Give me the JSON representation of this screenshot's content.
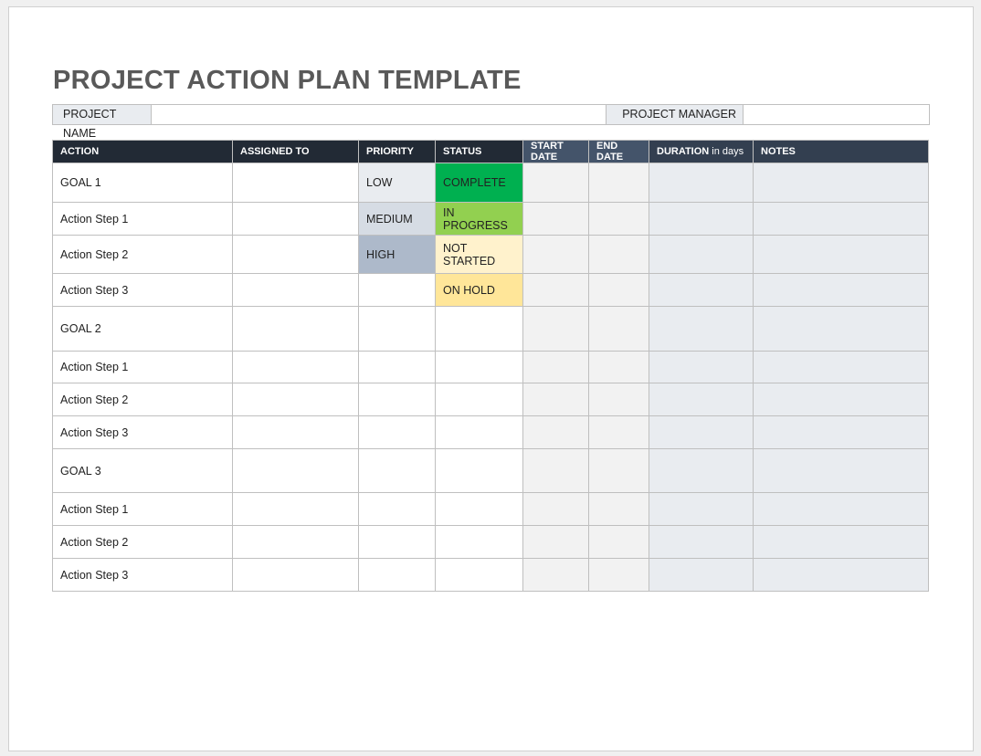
{
  "title": "PROJECT ACTION PLAN TEMPLATE",
  "project_info": {
    "name_label": "PROJECT NAME",
    "name_value": "",
    "manager_label": "PROJECT MANAGER",
    "manager_value": ""
  },
  "table": {
    "headers": {
      "action": "ACTION",
      "assigned": "ASSIGNED TO",
      "priority": "PRIORITY",
      "status": "STATUS",
      "start": "START DATE",
      "end": "END DATE",
      "duration": "DURATION",
      "duration_unit": "in days",
      "notes": "NOTES"
    },
    "rows": [
      {
        "action": "GOAL 1",
        "assigned": "",
        "priority": "LOW",
        "status": "COMPLETE",
        "start": "",
        "end": "",
        "duration": "",
        "notes": ""
      },
      {
        "action": "Action Step 1",
        "assigned": "",
        "priority": "MEDIUM",
        "status": "IN PROGRESS",
        "start": "",
        "end": "",
        "duration": "",
        "notes": ""
      },
      {
        "action": "Action Step 2",
        "assigned": "",
        "priority": "HIGH",
        "status": "NOT STARTED",
        "start": "",
        "end": "",
        "duration": "",
        "notes": ""
      },
      {
        "action": "Action Step 3",
        "assigned": "",
        "priority": "",
        "status": "ON HOLD",
        "start": "",
        "end": "",
        "duration": "",
        "notes": ""
      },
      {
        "action": "GOAL 2",
        "assigned": "",
        "priority": "",
        "status": "",
        "start": "",
        "end": "",
        "duration": "",
        "notes": ""
      },
      {
        "action": "Action Step 1",
        "assigned": "",
        "priority": "",
        "status": "",
        "start": "",
        "end": "",
        "duration": "",
        "notes": ""
      },
      {
        "action": "Action Step 2",
        "assigned": "",
        "priority": "",
        "status": "",
        "start": "",
        "end": "",
        "duration": "",
        "notes": ""
      },
      {
        "action": "Action Step 3",
        "assigned": "",
        "priority": "",
        "status": "",
        "start": "",
        "end": "",
        "duration": "",
        "notes": ""
      },
      {
        "action": "GOAL 3",
        "assigned": "",
        "priority": "",
        "status": "",
        "start": "",
        "end": "",
        "duration": "",
        "notes": ""
      },
      {
        "action": "Action Step 1",
        "assigned": "",
        "priority": "",
        "status": "",
        "start": "",
        "end": "",
        "duration": "",
        "notes": ""
      },
      {
        "action": "Action Step 2",
        "assigned": "",
        "priority": "",
        "status": "",
        "start": "",
        "end": "",
        "duration": "",
        "notes": ""
      },
      {
        "action": "Action Step 3",
        "assigned": "",
        "priority": "",
        "status": "",
        "start": "",
        "end": "",
        "duration": "",
        "notes": ""
      }
    ]
  },
  "colors": {
    "priority": {
      "LOW": "#e9ecf0",
      "MEDIUM": "#d6dce4",
      "HIGH": "#adb9ca"
    },
    "status": {
      "COMPLETE": "#00b050",
      "IN PROGRESS": "#92d050",
      "NOT STARTED": "#fff2cc",
      "ON HOLD": "#ffe699"
    }
  }
}
